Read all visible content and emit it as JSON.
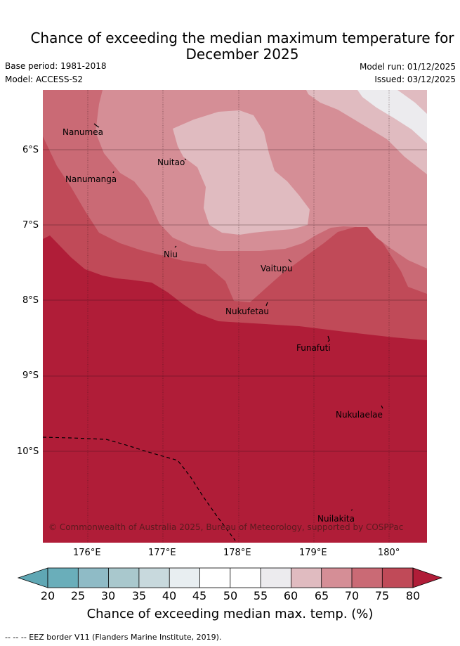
{
  "title_line1": "Chance of exceeding the median maximum temperature for",
  "title_line2": "December 2025",
  "base_period": "Base period: 1981-2018",
  "model": "Model: ACCESS-S2",
  "model_run": "Model run: 01/12/2025",
  "issued": "Issued: 03/12/2025",
  "lat_labels": [
    "6°S",
    "7°S",
    "8°S",
    "9°S",
    "10°S"
  ],
  "lon_labels": [
    "176°E",
    "177°E",
    "178°E",
    "179°E",
    "180°"
  ],
  "places": [
    {
      "name": "Nanumea"
    },
    {
      "name": "Nuitao"
    },
    {
      "name": "Nanumanga"
    },
    {
      "name": "Niu"
    },
    {
      "name": "Vaitupu"
    },
    {
      "name": "Nukufetau"
    },
    {
      "name": "Funafuti"
    },
    {
      "name": "Nukulaelae"
    },
    {
      "name": "Nuilakita"
    }
  ],
  "copyright": "© Commonwealth of Australia 2025, Bureau of Meteorology, supported by COSPPac",
  "colorbar": {
    "ticks": [
      "20",
      "25",
      "30",
      "35",
      "40",
      "45",
      "50",
      "55",
      "60",
      "65",
      "70",
      "75",
      "80"
    ],
    "colors": {
      "under": "#5fa7b4",
      "c20": "#6aaeba",
      "c25": "#8fbbc6",
      "c30": "#a9c8cd",
      "c35": "#c8d9dd",
      "c40": "#e8eef1",
      "c45": "#ffffff",
      "c50": "#ffffff",
      "c55": "#ecebee",
      "c60": "#e0bbc0",
      "c65": "#d58e96",
      "c70": "#ca6a75",
      "c75": "#c04a58",
      "over": "#b01d38"
    },
    "title": "Chance of exceeding median max. temp. (%)"
  },
  "footer": "--  --  -- EEZ border V11 (Flanders Marine Institute, 2019)."
}
